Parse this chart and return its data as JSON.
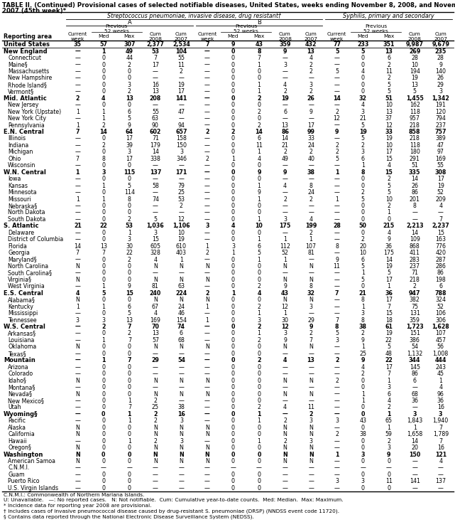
{
  "title_line1": "TABLE II. (Continued) Provisional cases of selected notifiable diseases, United States, weeks ending November 8, 2008, and November 10,",
  "title_line2": "2007 (45th week)*",
  "col_group1": "Streptococcus pneumoniae, invasive disease, drug resistant†",
  "col_group1a": "A",
  "col_group1b": "B",
  "col_group2": "Syphilis, primary and secondary",
  "rows": [
    [
      "United States",
      "35",
      "57",
      "307",
      "2,377",
      "2,534",
      "7",
      "9",
      "43",
      "359",
      "432",
      "77",
      "233",
      "351",
      "9,987",
      "9,679"
    ],
    [
      "New England",
      "—",
      "1",
      "49",
      "53",
      "104",
      "—",
      "0",
      "8",
      "9",
      "13",
      "5",
      "5",
      "13",
      "269",
      "235"
    ],
    [
      "Connecticut",
      "—",
      "0",
      "44",
      "7",
      "55",
      "—",
      "0",
      "7",
      "—",
      "4",
      "—",
      "0",
      "6",
      "28",
      "28"
    ],
    [
      "Maine§",
      "—",
      "0",
      "2",
      "17",
      "11",
      "—",
      "0",
      "1",
      "3",
      "2",
      "—",
      "0",
      "2",
      "10",
      "9"
    ],
    [
      "Massachusetts",
      "—",
      "0",
      "0",
      "—",
      "2",
      "—",
      "0",
      "0",
      "—",
      "2",
      "5",
      "4",
      "11",
      "194",
      "140"
    ],
    [
      "New Hampshire",
      "—",
      "0",
      "0",
      "—",
      "—",
      "—",
      "0",
      "0",
      "—",
      "—",
      "—",
      "0",
      "2",
      "19",
      "26"
    ],
    [
      "Rhode Island§",
      "—",
      "0",
      "3",
      "16",
      "19",
      "—",
      "0",
      "1",
      "4",
      "3",
      "—",
      "0",
      "5",
      "13",
      "29"
    ],
    [
      "Vermont§",
      "—",
      "0",
      "2",
      "13",
      "17",
      "—",
      "0",
      "1",
      "2",
      "2",
      "—",
      "0",
      "5",
      "5",
      "3"
    ],
    [
      "Mid. Atlantic",
      "2",
      "4",
      "13",
      "208",
      "141",
      "—",
      "0",
      "2",
      "19",
      "26",
      "14",
      "32",
      "51",
      "1,455",
      "1,342"
    ],
    [
      "New Jersey",
      "—",
      "0",
      "0",
      "—",
      "—",
      "—",
      "0",
      "0",
      "—",
      "—",
      "—",
      "4",
      "10",
      "162",
      "191"
    ],
    [
      "New York (Upstate)",
      "1",
      "1",
      "6",
      "55",
      "47",
      "—",
      "0",
      "2",
      "6",
      "9",
      "2",
      "3",
      "13",
      "118",
      "120"
    ],
    [
      "New York City",
      "—",
      "1",
      "5",
      "63",
      "—",
      "—",
      "0",
      "0",
      "—",
      "—",
      "12",
      "21",
      "37",
      "957",
      "794"
    ],
    [
      "Pennsylvania",
      "1",
      "2",
      "9",
      "90",
      "94",
      "—",
      "0",
      "2",
      "13",
      "17",
      "—",
      "5",
      "12",
      "218",
      "237"
    ],
    [
      "E.N. Central",
      "7",
      "14",
      "64",
      "602",
      "657",
      "2",
      "2",
      "14",
      "86",
      "99",
      "9",
      "19",
      "33",
      "858",
      "757"
    ],
    [
      "Illinois",
      "—",
      "0",
      "17",
      "71",
      "158",
      "—",
      "0",
      "6",
      "14",
      "33",
      "—",
      "5",
      "19",
      "218",
      "389"
    ],
    [
      "Indiana",
      "—",
      "2",
      "39",
      "179",
      "150",
      "—",
      "0",
      "11",
      "21",
      "24",
      "2",
      "2",
      "10",
      "118",
      "47"
    ],
    [
      "Michigan",
      "—",
      "0",
      "3",
      "14",
      "3",
      "—",
      "0",
      "1",
      "2",
      "2",
      "2",
      "3",
      "17",
      "180",
      "97"
    ],
    [
      "Ohio",
      "7",
      "8",
      "17",
      "338",
      "346",
      "2",
      "1",
      "4",
      "49",
      "40",
      "5",
      "6",
      "15",
      "291",
      "169"
    ],
    [
      "Wisconsin",
      "—",
      "0",
      "0",
      "—",
      "—",
      "—",
      "0",
      "0",
      "—",
      "—",
      "—",
      "1",
      "4",
      "51",
      "55"
    ],
    [
      "W.N. Central",
      "1",
      "3",
      "115",
      "137",
      "171",
      "—",
      "0",
      "9",
      "9",
      "38",
      "1",
      "8",
      "15",
      "335",
      "308"
    ],
    [
      "Iowa",
      "—",
      "0",
      "0",
      "—",
      "—",
      "—",
      "0",
      "0",
      "—",
      "—",
      "—",
      "0",
      "2",
      "14",
      "17"
    ],
    [
      "Kansas",
      "—",
      "1",
      "5",
      "58",
      "79",
      "—",
      "0",
      "1",
      "4",
      "8",
      "—",
      "0",
      "5",
      "26",
      "19"
    ],
    [
      "Minnesota",
      "—",
      "0",
      "114",
      "—",
      "25",
      "—",
      "0",
      "9",
      "—",
      "24",
      "—",
      "2",
      "5",
      "86",
      "52"
    ],
    [
      "Missouri",
      "1",
      "1",
      "8",
      "74",
      "53",
      "—",
      "0",
      "1",
      "2",
      "2",
      "1",
      "5",
      "10",
      "201",
      "209"
    ],
    [
      "Nebraska§",
      "—",
      "0",
      "0",
      "—",
      "2",
      "—",
      "0",
      "0",
      "—",
      "—",
      "—",
      "0",
      "2",
      "8",
      "4"
    ],
    [
      "North Dakota",
      "—",
      "0",
      "0",
      "—",
      "—",
      "—",
      "0",
      "0",
      "—",
      "—",
      "—",
      "0",
      "1",
      "—",
      "—"
    ],
    [
      "South Dakota",
      "—",
      "0",
      "2",
      "5",
      "12",
      "—",
      "0",
      "1",
      "3",
      "4",
      "—",
      "0",
      "0",
      "—",
      "7"
    ],
    [
      "S. Atlantic",
      "21",
      "22",
      "53",
      "1,036",
      "1,106",
      "3",
      "4",
      "10",
      "175",
      "199",
      "28",
      "50",
      "215",
      "2,213",
      "2,237"
    ],
    [
      "Delaware",
      "—",
      "0",
      "1",
      "3",
      "10",
      "—",
      "0",
      "0",
      "—",
      "2",
      "—",
      "0",
      "4",
      "14",
      "15"
    ],
    [
      "District of Columbia",
      "—",
      "0",
      "3",
      "15",
      "19",
      "—",
      "0",
      "1",
      "1",
      "1",
      "—",
      "2",
      "9",
      "109",
      "163"
    ],
    [
      "Florida",
      "14",
      "13",
      "30",
      "605",
      "610",
      "1",
      "3",
      "6",
      "112",
      "107",
      "8",
      "20",
      "36",
      "868",
      "776"
    ],
    [
      "Georgia",
      "7",
      "7",
      "22",
      "328",
      "403",
      "2",
      "1",
      "5",
      "52",
      "81",
      "—",
      "10",
      "175",
      "411",
      "420"
    ],
    [
      "Maryland§",
      "—",
      "0",
      "2",
      "4",
      "1",
      "—",
      "0",
      "1",
      "1",
      "—",
      "9",
      "6",
      "14",
      "283",
      "287"
    ],
    [
      "North Carolina",
      "N",
      "0",
      "0",
      "N",
      "N",
      "N",
      "0",
      "0",
      "N",
      "N",
      "11",
      "5",
      "19",
      "237",
      "286"
    ],
    [
      "South Carolina§",
      "—",
      "0",
      "0",
      "—",
      "—",
      "—",
      "0",
      "0",
      "—",
      "—",
      "—",
      "1",
      "5",
      "71",
      "86"
    ],
    [
      "Virginia§",
      "N",
      "0",
      "0",
      "N",
      "N",
      "N",
      "0",
      "0",
      "N",
      "N",
      "—",
      "5",
      "17",
      "218",
      "198"
    ],
    [
      "West Virginia",
      "—",
      "1",
      "9",
      "81",
      "63",
      "—",
      "0",
      "2",
      "9",
      "8",
      "—",
      "0",
      "1",
      "2",
      "6"
    ],
    [
      "E.S. Central",
      "4",
      "5",
      "15",
      "240",
      "224",
      "2",
      "1",
      "4",
      "43",
      "32",
      "7",
      "21",
      "36",
      "947",
      "788"
    ],
    [
      "Alabama§",
      "N",
      "0",
      "0",
      "N",
      "N",
      "N",
      "0",
      "0",
      "N",
      "N",
      "—",
      "8",
      "17",
      "382",
      "324"
    ],
    [
      "Kentucky",
      "1",
      "1",
      "6",
      "67",
      "24",
      "1",
      "0",
      "2",
      "12",
      "3",
      "—",
      "1",
      "7",
      "75",
      "52"
    ],
    [
      "Mississippi",
      "—",
      "0",
      "5",
      "4",
      "46",
      "—",
      "0",
      "1",
      "1",
      "—",
      "—",
      "3",
      "15",
      "131",
      "106"
    ],
    [
      "Tennessee",
      "3",
      "3",
      "13",
      "169",
      "154",
      "1",
      "0",
      "3",
      "30",
      "29",
      "7",
      "8",
      "18",
      "359",
      "306"
    ],
    [
      "W.S. Central",
      "—",
      "2",
      "7",
      "70",
      "74",
      "—",
      "0",
      "2",
      "12",
      "9",
      "8",
      "38",
      "61",
      "1,723",
      "1,628"
    ],
    [
      "Arkansas§",
      "—",
      "0",
      "2",
      "13",
      "6",
      "—",
      "0",
      "1",
      "3",
      "2",
      "5",
      "2",
      "19",
      "151",
      "107"
    ],
    [
      "Louisiana",
      "—",
      "1",
      "7",
      "57",
      "68",
      "—",
      "0",
      "2",
      "9",
      "7",
      "3",
      "9",
      "22",
      "386",
      "457"
    ],
    [
      "Oklahoma",
      "N",
      "0",
      "0",
      "N",
      "N",
      "N",
      "0",
      "0",
      "N",
      "N",
      "—",
      "1",
      "5",
      "54",
      "56"
    ],
    [
      "Texas§",
      "—",
      "0",
      "0",
      "—",
      "—",
      "—",
      "0",
      "0",
      "—",
      "—",
      "—",
      "25",
      "48",
      "1,132",
      "1,008"
    ],
    [
      "Mountain",
      "—",
      "1",
      "7",
      "29",
      "54",
      "—",
      "0",
      "2",
      "4",
      "13",
      "2",
      "9",
      "22",
      "344",
      "444"
    ],
    [
      "Arizona",
      "—",
      "0",
      "0",
      "—",
      "—",
      "—",
      "0",
      "0",
      "—",
      "—",
      "—",
      "4",
      "17",
      "145",
      "243"
    ],
    [
      "Colorado",
      "—",
      "0",
      "0",
      "—",
      "—",
      "—",
      "0",
      "0",
      "—",
      "—",
      "—",
      "2",
      "7",
      "86",
      "45"
    ],
    [
      "Idaho§",
      "N",
      "0",
      "0",
      "N",
      "N",
      "N",
      "0",
      "0",
      "N",
      "N",
      "2",
      "0",
      "1",
      "6",
      "1"
    ],
    [
      "Montana§",
      "—",
      "0",
      "0",
      "—",
      "—",
      "—",
      "0",
      "0",
      "—",
      "—",
      "—",
      "0",
      "3",
      "—",
      "4"
    ],
    [
      "Nevada§",
      "N",
      "0",
      "0",
      "N",
      "N",
      "N",
      "0",
      "0",
      "N",
      "N",
      "—",
      "1",
      "6",
      "68",
      "96"
    ],
    [
      "New Mexico§",
      "—",
      "0",
      "1",
      "2",
      "—",
      "—",
      "0",
      "0",
      "—",
      "—",
      "—",
      "1",
      "4",
      "36",
      "36"
    ],
    [
      "Utah",
      "—",
      "0",
      "7",
      "25",
      "38",
      "—",
      "0",
      "2",
      "4",
      "11",
      "—",
      "0",
      "2",
      "—",
      "16"
    ],
    [
      "Wyoming§",
      "—",
      "0",
      "1",
      "2",
      "16",
      "—",
      "0",
      "1",
      "—",
      "2",
      "—",
      "0",
      "1",
      "3",
      "3"
    ],
    [
      "Pacific",
      "—",
      "0",
      "1",
      "2",
      "3",
      "—",
      "0",
      "1",
      "2",
      "3",
      "3",
      "43",
      "65",
      "1,843",
      "1,940"
    ],
    [
      "Alaska",
      "N",
      "0",
      "0",
      "N",
      "N",
      "N",
      "0",
      "0",
      "N",
      "N",
      "—",
      "0",
      "1",
      "1",
      "7"
    ],
    [
      "California",
      "N",
      "0",
      "0",
      "N",
      "N",
      "N",
      "0",
      "0",
      "N",
      "N",
      "2",
      "38",
      "59",
      "1,658",
      "1,789"
    ],
    [
      "Hawaii",
      "—",
      "0",
      "1",
      "2",
      "3",
      "—",
      "0",
      "1",
      "2",
      "3",
      "—",
      "0",
      "2",
      "14",
      "7"
    ],
    [
      "Oregon§",
      "N",
      "0",
      "0",
      "N",
      "N",
      "N",
      "0",
      "0",
      "N",
      "N",
      "—",
      "0",
      "3",
      "20",
      "16"
    ],
    [
      "Washington",
      "N",
      "0",
      "0",
      "N",
      "N",
      "N",
      "0",
      "0",
      "N",
      "N",
      "1",
      "3",
      "9",
      "150",
      "121"
    ],
    [
      "American Samoa",
      "N",
      "0",
      "0",
      "N",
      "N",
      "N",
      "0",
      "0",
      "N",
      "N",
      "—",
      "0",
      "0",
      "—",
      "4"
    ],
    [
      "C.N.M.I.",
      "—",
      "—",
      "—",
      "—",
      "—",
      "—",
      "—",
      "—",
      "—",
      "—",
      "—",
      "—",
      "—",
      "—",
      "—"
    ],
    [
      "Guam",
      "—",
      "0",
      "0",
      "—",
      "—",
      "—",
      "0",
      "0",
      "—",
      "—",
      "—",
      "0",
      "0",
      "—",
      "—"
    ],
    [
      "Puerto Rico",
      "—",
      "0",
      "0",
      "—",
      "—",
      "—",
      "0",
      "0",
      "—",
      "—",
      "3",
      "3",
      "11",
      "141",
      "137"
    ],
    [
      "U.S. Virgin Islands",
      "—",
      "0",
      "0",
      "—",
      "—",
      "—",
      "0",
      "0",
      "—",
      "—",
      "—",
      "0",
      "0",
      "—",
      "—"
    ]
  ],
  "bold_rows": [
    0,
    1,
    8,
    13,
    19,
    27,
    37,
    42,
    47,
    55,
    61
  ],
  "footnotes": [
    "C.N.M.I.: Commonwealth of Northern Mariana Islands.",
    "U: Unavailable.   —: No reported cases.   N: Not notifiable.  Cum: Cumulative year-to-date counts.  Med: Median.  Max: Maximum.",
    "* Incidence data for reporting year 2008 are provisional.",
    "† Includes cases of invasive pneumococcal disease caused by drug-resistant S. pneumoniae (DRSP) (NNDSS event code 11720).",
    "§ Contains data reported through the National Electronic Disease Surveillance System (NEDSS)."
  ]
}
